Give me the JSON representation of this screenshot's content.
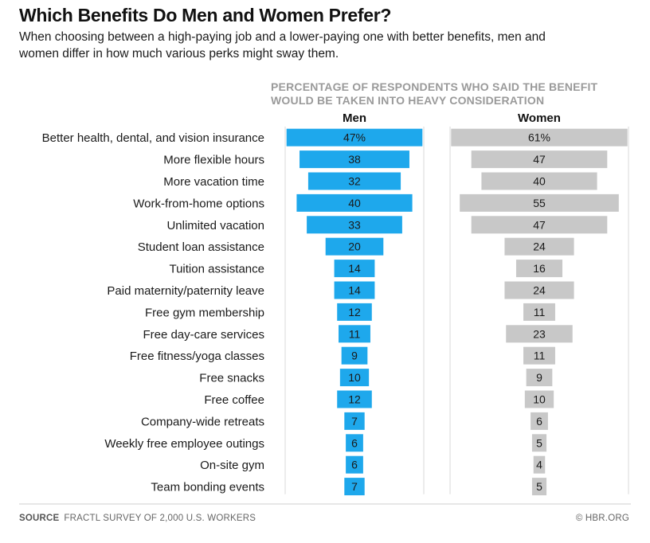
{
  "title": "Which Benefits Do Men and Women Prefer?",
  "subtitle": "When choosing between a high-paying job and a lower-paying one with better benefits, men and women differ in how much various perks might sway them.",
  "header": "PERCENTAGE OF RESPONDENTS WHO SAID THE BENEFIT WOULD BE TAKEN INTO HEAVY CONSIDERATION",
  "footer": {
    "source_label": "SOURCE",
    "source_text": "FRACTL SURVEY OF 2,000 U.S. WORKERS",
    "credit": "© HBR.ORG"
  },
  "colors": {
    "men": "#1ea8ec",
    "women": "#c8c8c8",
    "axis": "#d9d9d9"
  },
  "chart_data": {
    "type": "bar",
    "title": "Which Benefits Do Men and Women Prefer?",
    "layout": "mirrored-centered-horizontal-bars",
    "unit": "%",
    "categories": [
      "Better health, dental, and vision insurance",
      "More flexible hours",
      "More vacation time",
      "Work-from-home options",
      "Unlimited vacation",
      "Student loan assistance",
      "Tuition assistance",
      "Paid maternity/paternity leave",
      "Free gym membership",
      "Free day-care services",
      "Free fitness/yoga classes",
      "Free snacks",
      "Free coffee",
      "Company-wide retreats",
      "Weekly free employee outings",
      "On-site gym",
      "Team bonding events"
    ],
    "series": [
      {
        "name": "Men",
        "values": [
          47,
          38,
          32,
          40,
          33,
          20,
          14,
          14,
          12,
          11,
          9,
          10,
          12,
          7,
          6,
          6,
          7
        ],
        "labels": [
          "47%",
          "38",
          "32",
          "40",
          "33",
          "20",
          "14",
          "14",
          "12",
          "11",
          "9",
          "10",
          "12",
          "7",
          "6",
          "6",
          "7"
        ]
      },
      {
        "name": "Women",
        "values": [
          61,
          47,
          40,
          55,
          47,
          24,
          16,
          24,
          11,
          23,
          11,
          9,
          10,
          6,
          5,
          4,
          5
        ],
        "labels": [
          "61%",
          "47",
          "40",
          "55",
          "47",
          "24",
          "16",
          "24",
          "11",
          "23",
          "11",
          "9",
          "10",
          "6",
          "5",
          "4",
          "5"
        ]
      }
    ]
  }
}
